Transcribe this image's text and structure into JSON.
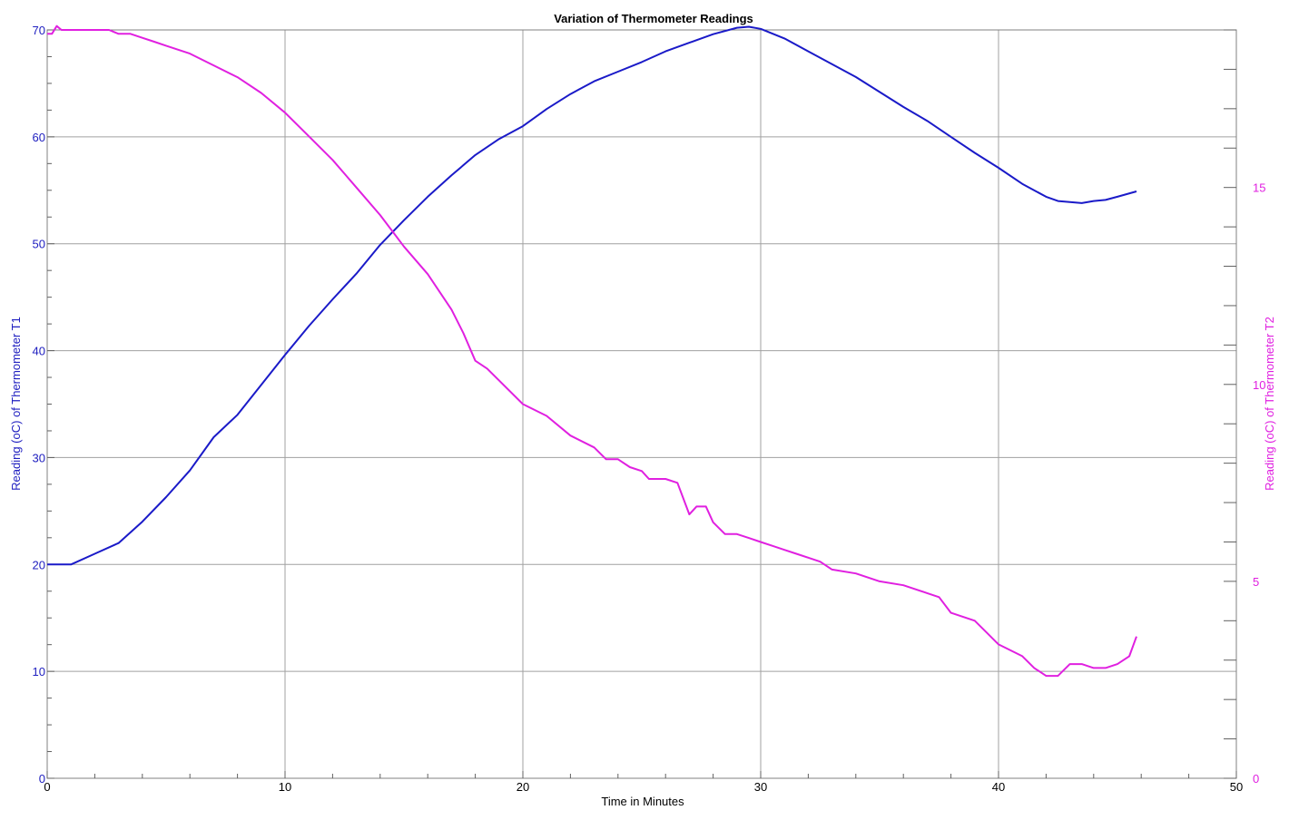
{
  "chart_data": {
    "type": "line",
    "title": "Variation of Thermometer Readings",
    "xlabel": "Time in Minutes",
    "ylabel_left": "Reading (oC) of Thermometer T1",
    "ylabel_right": "Reading (oC) of Thermometer T2",
    "xlim": [
      0,
      50
    ],
    "ylim_left": [
      0,
      70
    ],
    "ylim_right": [
      0,
      19
    ],
    "x_ticks": [
      0,
      10,
      20,
      30,
      40,
      50
    ],
    "y_left_ticks": [
      0,
      10,
      20,
      30,
      40,
      50,
      60,
      70
    ],
    "y_right_ticks": [
      0,
      5,
      10,
      15
    ],
    "grid": true,
    "series": [
      {
        "name": "T1",
        "axis": "left",
        "color": "#1a1ac8",
        "x": [
          0,
          1,
          2,
          3,
          4,
          5,
          6,
          7,
          8,
          9,
          10,
          11,
          12,
          13,
          14,
          15,
          16,
          17,
          18,
          19,
          20,
          21,
          22,
          23,
          24,
          25,
          26,
          27,
          28,
          29,
          29.5,
          30,
          31,
          32,
          33,
          34,
          35,
          36,
          37,
          38,
          39,
          40,
          41,
          42,
          42.5,
          43,
          43.5,
          44,
          44.5,
          45,
          45.8
        ],
        "y": [
          20,
          20,
          21,
          22,
          24,
          26.3,
          28.8,
          31.9,
          34,
          36.8,
          39.6,
          42.3,
          44.8,
          47.2,
          49.9,
          52.2,
          54.4,
          56.4,
          58.3,
          59.8,
          61,
          62.6,
          64,
          65.2,
          66.1,
          67,
          68,
          68.8,
          69.6,
          70.2,
          70.3,
          70.1,
          69.2,
          68,
          66.8,
          65.6,
          64.2,
          62.8,
          61.5,
          60,
          58.5,
          57.1,
          55.6,
          54.4,
          54,
          53.9,
          53.8,
          54,
          54.1,
          54.4,
          54.9
        ]
      },
      {
        "name": "T2",
        "axis": "right",
        "color": "#e020e0",
        "x": [
          0,
          0.2,
          0.4,
          0.6,
          1,
          2,
          2.6,
          3,
          3.5,
          4,
          4.5,
          5,
          6,
          7,
          8,
          9,
          10,
          11,
          12,
          13,
          14,
          15,
          16,
          17,
          17.5,
          18,
          18.5,
          19,
          20,
          21,
          22,
          23,
          23.5,
          24,
          24.5,
          25,
          25.3,
          26,
          26.5,
          27,
          27.3,
          27.7,
          28,
          28.5,
          29,
          29.5,
          30,
          30.5,
          31,
          31.5,
          32,
          32.5,
          33,
          34,
          35,
          36,
          37,
          37.5,
          38,
          39,
          39.5,
          40,
          41,
          41.5,
          42,
          42.5,
          43,
          43.5,
          44,
          44.5,
          45,
          45.5,
          45.8
        ],
        "y": [
          18.9,
          18.9,
          19.1,
          19,
          19,
          19,
          19,
          18.9,
          18.9,
          18.8,
          18.7,
          18.6,
          18.4,
          18.1,
          17.8,
          17.4,
          16.9,
          16.3,
          15.7,
          15,
          14.3,
          13.5,
          12.8,
          11.9,
          11.3,
          10.6,
          10.4,
          10.1,
          9.5,
          9.2,
          8.7,
          8.4,
          8.1,
          8.1,
          7.9,
          7.8,
          7.6,
          7.6,
          7.5,
          6.7,
          6.9,
          6.9,
          6.5,
          6.2,
          6.2,
          6.1,
          6,
          5.9,
          5.8,
          5.7,
          5.6,
          5.5,
          5.3,
          5.2,
          5,
          4.9,
          4.7,
          4.6,
          4.2,
          4,
          3.7,
          3.4,
          3.1,
          2.8,
          2.6,
          2.6,
          2.9,
          2.9,
          2.8,
          2.8,
          2.9,
          3.1,
          3.6
        ]
      }
    ]
  }
}
